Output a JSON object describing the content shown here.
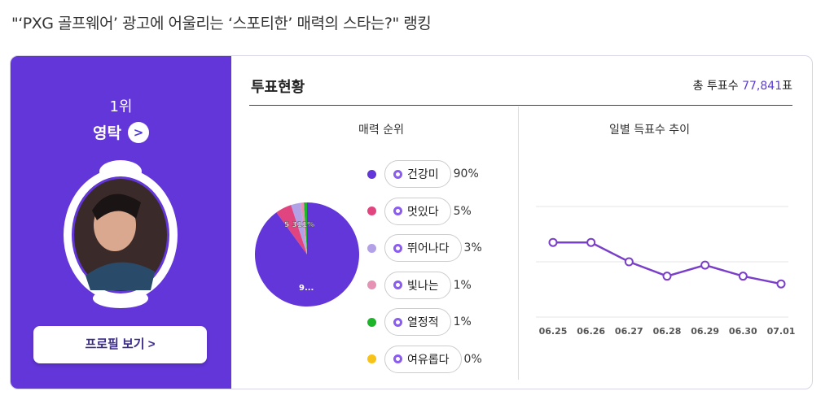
{
  "title": "\"‘PXG 골프웨어’ 광고에 어울리는 ‘스포티한’ 매력의 스타는?\" 랭킹",
  "left": {
    "rank": "1위",
    "name": "영탁",
    "profile_button": "프로필 보기 >"
  },
  "section": {
    "title": "투표현황",
    "total_label": "총 투표수",
    "total_value": "77,841",
    "total_unit": "표"
  },
  "pie": {
    "title": "매력 순위",
    "center_label": "9...",
    "small_label": "5 311%"
  },
  "line": {
    "title": "일별 득표수 추이"
  },
  "colors": {
    "accent": "#6236d8"
  },
  "chart_data": [
    {
      "type": "pie",
      "title": "매력 순위",
      "categories": [
        "건강미",
        "멋있다",
        "뛰어나다",
        "빛나는",
        "열정적",
        "여유롭다"
      ],
      "values": [
        90,
        5,
        3,
        1,
        1,
        0
      ],
      "labels": [
        "90%",
        "5%",
        "3%",
        "1%",
        "1%",
        "0%"
      ],
      "colors": [
        "#6236d8",
        "#e0457f",
        "#b3a1e8",
        "#e592b5",
        "#1db52a",
        "#f7c21a"
      ]
    },
    {
      "type": "line",
      "title": "일별 득표수 추이",
      "categories": [
        "06.25",
        "06.26",
        "06.27",
        "06.28",
        "06.29",
        "06.30",
        "07.01"
      ],
      "values": [
        1.35,
        1.35,
        1.0,
        0.74,
        0.94,
        0.74,
        0.6
      ],
      "ylim": [
        0,
        2
      ],
      "grid": true
    }
  ]
}
